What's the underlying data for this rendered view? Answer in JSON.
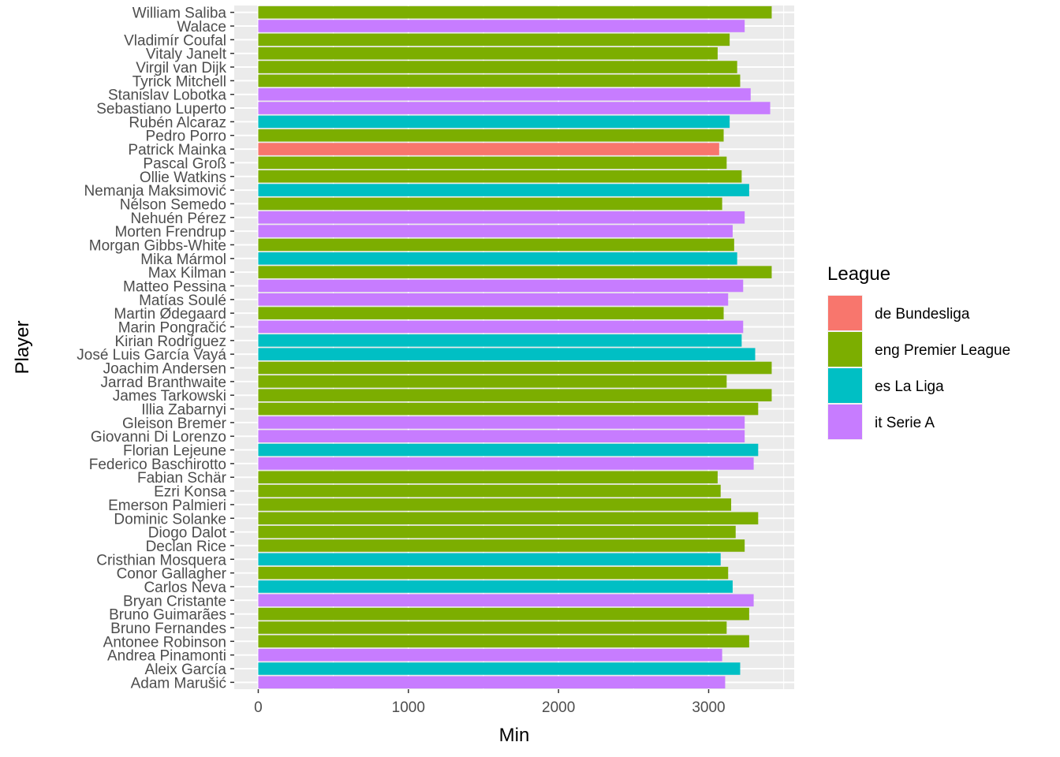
{
  "chart_data": {
    "type": "bar",
    "orientation": "horizontal",
    "xlabel": "Min",
    "ylabel": "Player",
    "xlim": [
      -160,
      3570
    ],
    "x_ticks": [
      0,
      1000,
      2000,
      3000
    ],
    "grid": true,
    "legend": {
      "title": "League",
      "placement": "right",
      "entries": [
        {
          "name": "de Bundesliga",
          "color": "#F8766D"
        },
        {
          "name": "eng Premier League",
          "color": "#7CAE00"
        },
        {
          "name": "es La Liga",
          "color": "#00BFC4"
        },
        {
          "name": "it Serie A",
          "color": "#C77CFF"
        }
      ]
    },
    "bars": [
      {
        "player": "William Saliba",
        "league": "eng Premier League",
        "min": 3420
      },
      {
        "player": "Walace",
        "league": "it Serie A",
        "min": 3240
      },
      {
        "player": "Vladimír Coufal",
        "league": "eng Premier League",
        "min": 3140
      },
      {
        "player": "Vitaly Janelt",
        "league": "eng Premier League",
        "min": 3060
      },
      {
        "player": "Virgil van Dijk",
        "league": "eng Premier League",
        "min": 3190
      },
      {
        "player": "Tyrick Mitchell",
        "league": "eng Premier League",
        "min": 3210
      },
      {
        "player": "Stanislav Lobotka",
        "league": "it Serie A",
        "min": 3280
      },
      {
        "player": "Sebastiano Luperto",
        "league": "it Serie A",
        "min": 3410
      },
      {
        "player": "Rubén Alcaraz",
        "league": "es La Liga",
        "min": 3140
      },
      {
        "player": "Pedro Porro",
        "league": "eng Premier League",
        "min": 3100
      },
      {
        "player": "Patrick Mainka",
        "league": "de Bundesliga",
        "min": 3070
      },
      {
        "player": "Pascal Groß",
        "league": "eng Premier League",
        "min": 3120
      },
      {
        "player": "Ollie Watkins",
        "league": "eng Premier League",
        "min": 3220
      },
      {
        "player": "Nemanja Maksimović",
        "league": "es La Liga",
        "min": 3270
      },
      {
        "player": "Nélson Semedo",
        "league": "eng Premier League",
        "min": 3090
      },
      {
        "player": "Nehuén Pérez",
        "league": "it Serie A",
        "min": 3240
      },
      {
        "player": "Morten Frendrup",
        "league": "it Serie A",
        "min": 3160
      },
      {
        "player": "Morgan Gibbs-White",
        "league": "eng Premier League",
        "min": 3170
      },
      {
        "player": "Mika Mármol",
        "league": "es La Liga",
        "min": 3190
      },
      {
        "player": "Max Kilman",
        "league": "eng Premier League",
        "min": 3420
      },
      {
        "player": "Matteo Pessina",
        "league": "it Serie A",
        "min": 3230
      },
      {
        "player": "Matías Soulé",
        "league": "it Serie A",
        "min": 3130
      },
      {
        "player": "Martin Ødegaard",
        "league": "eng Premier League",
        "min": 3100
      },
      {
        "player": "Marin Pongračić",
        "league": "it Serie A",
        "min": 3230
      },
      {
        "player": "Kirian Rodríguez",
        "league": "es La Liga",
        "min": 3220
      },
      {
        "player": "José Luis García Vayá",
        "league": "es La Liga",
        "min": 3310
      },
      {
        "player": "Joachim Andersen",
        "league": "eng Premier League",
        "min": 3420
      },
      {
        "player": "Jarrad Branthwaite",
        "league": "eng Premier League",
        "min": 3120
      },
      {
        "player": "James Tarkowski",
        "league": "eng Premier League",
        "min": 3420
      },
      {
        "player": "Illia Zabarnyi",
        "league": "eng Premier League",
        "min": 3330
      },
      {
        "player": "Gleison Bremer",
        "league": "it Serie A",
        "min": 3240
      },
      {
        "player": "Giovanni Di Lorenzo",
        "league": "it Serie A",
        "min": 3240
      },
      {
        "player": "Florian Lejeune",
        "league": "es La Liga",
        "min": 3330
      },
      {
        "player": "Federico Baschirotto",
        "league": "it Serie A",
        "min": 3300
      },
      {
        "player": "Fabian Schär",
        "league": "eng Premier League",
        "min": 3060
      },
      {
        "player": "Ezri Konsa",
        "league": "eng Premier League",
        "min": 3080
      },
      {
        "player": "Emerson Palmieri",
        "league": "eng Premier League",
        "min": 3150
      },
      {
        "player": "Dominic Solanke",
        "league": "eng Premier League",
        "min": 3330
      },
      {
        "player": "Diogo Dalot",
        "league": "eng Premier League",
        "min": 3180
      },
      {
        "player": "Declan Rice",
        "league": "eng Premier League",
        "min": 3240
      },
      {
        "player": "Cristhian Mosquera",
        "league": "es La Liga",
        "min": 3080
      },
      {
        "player": "Conor Gallagher",
        "league": "eng Premier League",
        "min": 3130
      },
      {
        "player": "Carlos Neva",
        "league": "es La Liga",
        "min": 3160
      },
      {
        "player": "Bryan Cristante",
        "league": "it Serie A",
        "min": 3300
      },
      {
        "player": "Bruno Guimarães",
        "league": "eng Premier League",
        "min": 3270
      },
      {
        "player": "Bruno Fernandes",
        "league": "eng Premier League",
        "min": 3120
      },
      {
        "player": "Antonee Robinson",
        "league": "eng Premier League",
        "min": 3270
      },
      {
        "player": "Andrea Pinamonti",
        "league": "it Serie A",
        "min": 3090
      },
      {
        "player": "Aleix García",
        "league": "es La Liga",
        "min": 3210
      },
      {
        "player": "Adam Marušić",
        "league": "it Serie A",
        "min": 3110
      }
    ]
  }
}
